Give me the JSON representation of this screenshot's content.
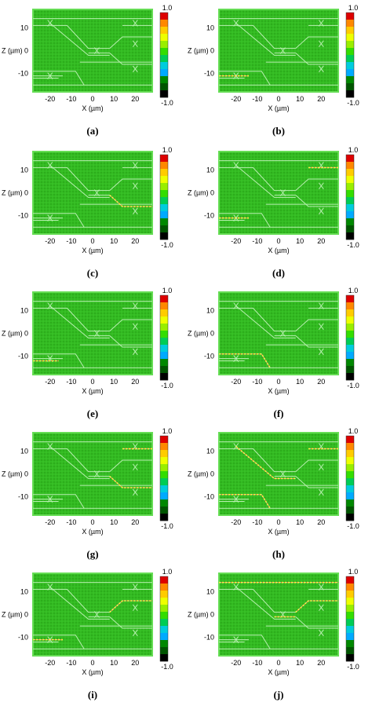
{
  "figure": {
    "colorbar": {
      "max_label": "1.0",
      "min_label": "-1.0",
      "colors": [
        "#dd0000",
        "#ff8800",
        "#ffcc00",
        "#eeff00",
        "#99ee00",
        "#33dd00",
        "#00cc55",
        "#00ccdd",
        "#00aaff",
        "#008800",
        "#005500",
        "#000000"
      ]
    },
    "axes": {
      "xlabel": "X (µm)",
      "ylabel": "Z (µm)",
      "xticks": [
        "-20",
        "-10",
        "0",
        "10",
        "20"
      ],
      "yticks": [
        "10",
        "0",
        "-10"
      ]
    },
    "panels": [
      {
        "label": "(a)"
      },
      {
        "label": "(b)"
      },
      {
        "label": "(c)"
      },
      {
        "label": "(d)"
      },
      {
        "label": "(e)"
      },
      {
        "label": "(f)"
      },
      {
        "label": "(g)"
      },
      {
        "label": "(h)"
      },
      {
        "label": "(i)"
      },
      {
        "label": "(j)"
      }
    ],
    "colors": {
      "field": "#33bb22",
      "field_dark": "#229911",
      "border": "#66dd55",
      "waveguide": "#b8f0b0",
      "highlight": "#ffee44",
      "highlight2": "#ff5522"
    }
  }
}
